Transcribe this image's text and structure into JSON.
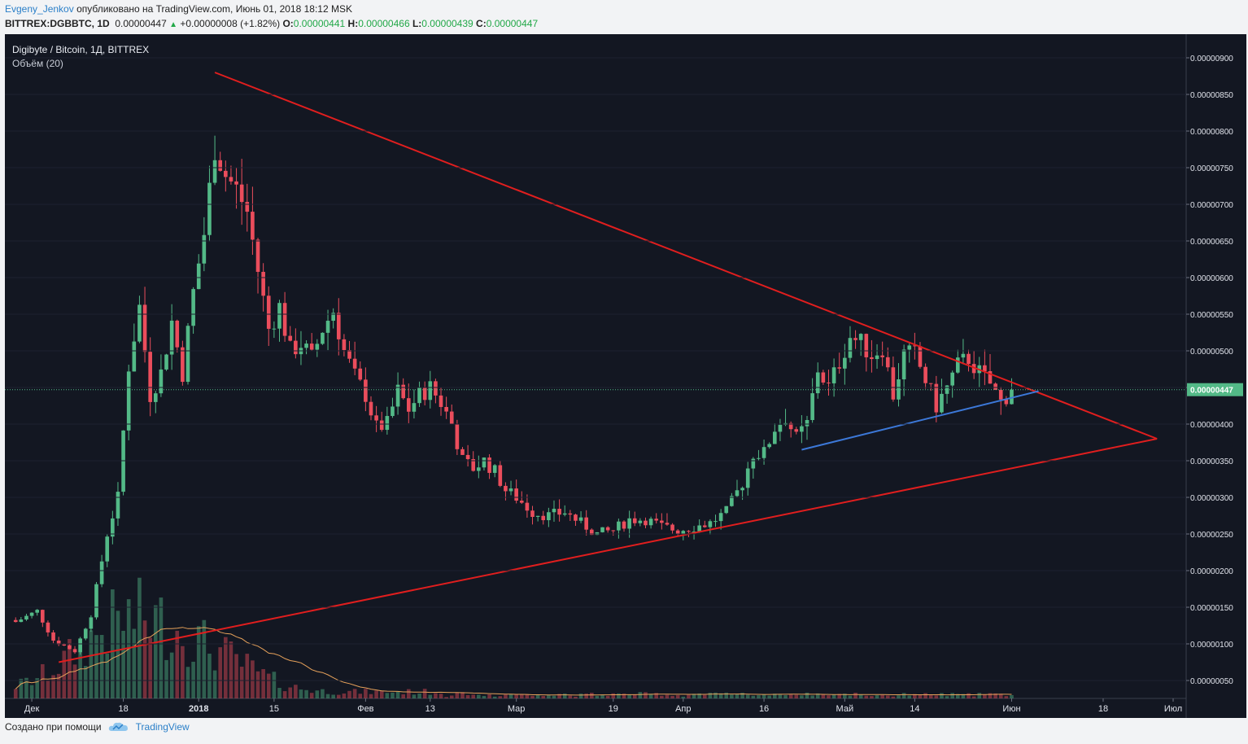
{
  "header": {
    "author": "Evgeny_Jenkov",
    "published": "опубликовано на TradingView.com, Июнь 01, 2018 18:12 MSK",
    "symbol": "BITTREX:DGBBTC, 1D",
    "last": "0.00000447",
    "change_arrow": "▲",
    "change": "+0.00000008 (+1.82%)",
    "o_label": "O:",
    "o_value": "0.00000441",
    "h_label": "H:",
    "h_value": "0.00000466",
    "l_label": "L:",
    "l_value": "0.00000439",
    "c_label": "C:",
    "c_value": "0.00000447"
  },
  "legend": {
    "title": "Digibyte / Bitcoin, 1Д, BITTREX",
    "volume": "Объём (20)"
  },
  "footer": {
    "created_with": "Создано при помощи",
    "brand": "TradingView",
    "logo_icon": "tradingview-cloud-icon"
  },
  "colors": {
    "background": "#131722",
    "up": "#53b987",
    "down": "#eb4d5c",
    "trendline": "#e01e1e",
    "support_line": "#3c78d8",
    "volume_ma": "#e6a15a",
    "last_price_tag": "#53b987"
  },
  "chart_data": {
    "type": "candlestick",
    "x_axis": {
      "ticks": [
        "Дек",
        "18",
        "2018",
        "15",
        "Фев",
        "13",
        "Мар",
        "19",
        "Апр",
        "16",
        "Май",
        "14",
        "Июн",
        "18",
        "Июл"
      ]
    },
    "y_axis": {
      "min": 3e-07,
      "max": 9.3e-06,
      "ticks": [
        "0.00000050",
        "0.00000100",
        "0.00000150",
        "0.00000200",
        "0.00000250",
        "0.00000300",
        "0.00000350",
        "0.00000400",
        "0.00000450",
        "0.00000500",
        "0.00000550",
        "0.00000600",
        "0.00000650",
        "0.00000700",
        "0.00000750",
        "0.00000800",
        "0.00000850",
        "0.00000900"
      ]
    },
    "last_price": "0.00000447",
    "price_path": [
      [
        "2017-11-28",
        1.3
      ],
      [
        "2017-12-02",
        1.45
      ],
      [
        "2017-12-05",
        1.05
      ],
      [
        "2017-12-09",
        0.9
      ],
      [
        "2017-12-12",
        1.4
      ],
      [
        "2017-12-15",
        2.5
      ],
      [
        "2017-12-17",
        3.0
      ],
      [
        "2017-12-19",
        4.8
      ],
      [
        "2017-12-21",
        5.6
      ],
      [
        "2017-12-23",
        4.4
      ],
      [
        "2017-12-25",
        4.7
      ],
      [
        "2017-12-27",
        5.4
      ],
      [
        "2017-12-29",
        4.7
      ],
      [
        "2017-12-31",
        5.8
      ],
      [
        "2018-01-02",
        6.6
      ],
      [
        "2018-01-04",
        7.8
      ],
      [
        "2018-01-06",
        7.4
      ],
      [
        "2018-01-08",
        7.2
      ],
      [
        "2018-01-10",
        6.9
      ],
      [
        "2018-01-12",
        6.1
      ],
      [
        "2018-01-14",
        5.3
      ],
      [
        "2018-01-16",
        5.6
      ],
      [
        "2018-01-18",
        5.0
      ],
      [
        "2018-01-20",
        5.1
      ],
      [
        "2018-01-22",
        4.9
      ],
      [
        "2018-01-24",
        5.3
      ],
      [
        "2018-01-26",
        5.55
      ],
      [
        "2018-01-28",
        5.0
      ],
      [
        "2018-01-30",
        4.65
      ],
      [
        "2018-02-01",
        4.4
      ],
      [
        "2018-02-03",
        3.95
      ],
      [
        "2018-02-05",
        4.0
      ],
      [
        "2018-02-07",
        4.45
      ],
      [
        "2018-02-09",
        4.2
      ],
      [
        "2018-02-11",
        4.4
      ],
      [
        "2018-02-13",
        4.5
      ],
      [
        "2018-02-15",
        4.3
      ],
      [
        "2018-02-17",
        4.0
      ],
      [
        "2018-02-19",
        3.5
      ],
      [
        "2018-02-21",
        3.4
      ],
      [
        "2018-02-23",
        3.5
      ],
      [
        "2018-02-25",
        3.35
      ],
      [
        "2018-02-27",
        3.1
      ],
      [
        "2018-03-01",
        3.0
      ],
      [
        "2018-03-04",
        2.8
      ],
      [
        "2018-03-07",
        2.75
      ],
      [
        "2018-03-10",
        2.8
      ],
      [
        "2018-03-13",
        2.65
      ],
      [
        "2018-03-16",
        2.5
      ],
      [
        "2018-03-19",
        2.55
      ],
      [
        "2018-03-22",
        2.7
      ],
      [
        "2018-03-25",
        2.7
      ],
      [
        "2018-03-28",
        2.6
      ],
      [
        "2018-03-31",
        2.55
      ],
      [
        "2018-04-03",
        2.6
      ],
      [
        "2018-04-06",
        2.65
      ],
      [
        "2018-04-09",
        2.8
      ],
      [
        "2018-04-12",
        3.2
      ],
      [
        "2018-04-14",
        3.6
      ],
      [
        "2018-04-16",
        3.6
      ],
      [
        "2018-04-18",
        3.95
      ],
      [
        "2018-04-20",
        4.1
      ],
      [
        "2018-04-22",
        3.8
      ],
      [
        "2018-04-24",
        4.0
      ],
      [
        "2018-04-26",
        4.75
      ],
      [
        "2018-04-28",
        4.5
      ],
      [
        "2018-04-30",
        4.85
      ],
      [
        "2018-05-02",
        5.2
      ],
      [
        "2018-05-04",
        5.1
      ],
      [
        "2018-05-06",
        4.95
      ],
      [
        "2018-05-08",
        5.05
      ],
      [
        "2018-05-10",
        4.4
      ],
      [
        "2018-05-12",
        4.95
      ],
      [
        "2018-05-14",
        4.95
      ],
      [
        "2018-05-16",
        4.6
      ],
      [
        "2018-05-18",
        4.25
      ],
      [
        "2018-05-20",
        4.5
      ],
      [
        "2018-05-22",
        4.8
      ],
      [
        "2018-05-24",
        4.9
      ],
      [
        "2018-05-26",
        4.7
      ],
      [
        "2018-05-28",
        4.55
      ],
      [
        "2018-05-30",
        4.3
      ],
      [
        "2018-06-01",
        4.47
      ]
    ],
    "price_path_unit": "1e-6 BTC",
    "annotations": {
      "upper_trendline": [
        [
          "2018-01-04",
          8.8
        ],
        [
          "2018-06-28",
          3.8
        ]
      ],
      "lower_trendline": [
        [
          "2017-12-06",
          0.75
        ],
        [
          "2018-06-28",
          3.8
        ]
      ],
      "support_line": [
        [
          "2018-04-23",
          3.65
        ],
        [
          "2018-06-06",
          4.45
        ]
      ]
    }
  }
}
